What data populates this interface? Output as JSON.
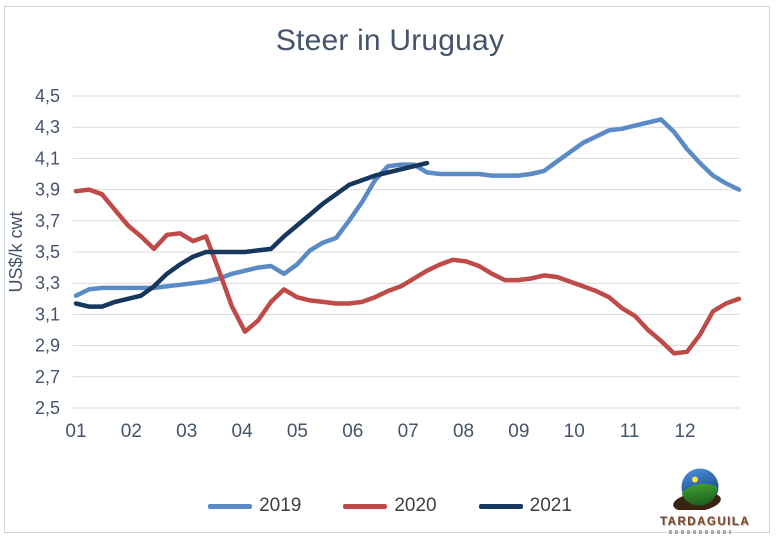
{
  "title": "Steer in Uruguay",
  "y_axis_title": "US$/k cwt",
  "y_tick_labels": [
    "4,5",
    "4,3",
    "4,1",
    "3,9",
    "3,7",
    "3,5",
    "3,3",
    "3,1",
    "2,9",
    "2,7",
    "2,5"
  ],
  "x_labels": [
    "01",
    "02",
    "03",
    "04",
    "05",
    "06",
    "07",
    "08",
    "09",
    "10",
    "11",
    "12"
  ],
  "legend_labels": [
    "2019",
    "2020",
    "2021"
  ],
  "logo": {
    "text": "TARDAGUILA"
  },
  "colors": {
    "series_2019": "#5B8BC5",
    "series_2020": "#BE4B48",
    "series_2021": "#17375E",
    "gridline": "#D9D9D9",
    "axis_text": "#44546A",
    "legend_text": "#404040",
    "title_text": "#44546A"
  },
  "chart_data": {
    "type": "line",
    "title": "Steer in Uruguay",
    "xlabel": "",
    "ylabel": "US$/k cwt",
    "ylim": [
      2.5,
      4.5
    ],
    "ytick_step": 0.2,
    "x_axis_labels": [
      "01",
      "02",
      "03",
      "04",
      "05",
      "06",
      "07",
      "08",
      "09",
      "10",
      "11",
      "12"
    ],
    "x_unit": "weekly observations across months 01-12",
    "grid": "horizontal only",
    "legend_position": "bottom center",
    "series": [
      {
        "name": "2019",
        "color": "#5B8BC5",
        "values": [
          3.22,
          3.26,
          3.27,
          3.27,
          3.27,
          3.27,
          3.27,
          3.28,
          3.29,
          3.3,
          3.31,
          3.33,
          3.36,
          3.38,
          3.4,
          3.41,
          3.36,
          3.42,
          3.51,
          3.56,
          3.59,
          3.7,
          3.82,
          3.96,
          4.05,
          4.06,
          4.06,
          4.01,
          4.0,
          4.0,
          4.0,
          4.0,
          3.99,
          3.99,
          3.99,
          4.0,
          4.02,
          4.08,
          4.14,
          4.2,
          4.24,
          4.28,
          4.29,
          4.31,
          4.33,
          4.35,
          4.27,
          4.16,
          4.07,
          3.99,
          3.94,
          3.9
        ]
      },
      {
        "name": "2020",
        "color": "#BE4B48",
        "values": [
          3.89,
          3.9,
          3.87,
          3.77,
          3.67,
          3.6,
          3.52,
          3.61,
          3.62,
          3.57,
          3.6,
          3.38,
          3.15,
          2.99,
          3.06,
          3.18,
          3.26,
          3.21,
          3.19,
          3.18,
          3.17,
          3.17,
          3.18,
          3.21,
          3.25,
          3.28,
          3.33,
          3.38,
          3.42,
          3.45,
          3.44,
          3.41,
          3.36,
          3.32,
          3.32,
          3.33,
          3.35,
          3.34,
          3.31,
          3.28,
          3.25,
          3.21,
          3.14,
          3.09,
          3.0,
          2.93,
          2.85,
          2.86,
          2.97,
          3.12,
          3.17,
          3.2
        ]
      },
      {
        "name": "2021",
        "color": "#17375E",
        "values": [
          3.17,
          3.15,
          3.15,
          3.18,
          3.2,
          3.22,
          3.28,
          3.36,
          3.42,
          3.47,
          3.5,
          3.5,
          3.5,
          3.5,
          3.51,
          3.52,
          3.6,
          3.67,
          3.74,
          3.81,
          3.87,
          3.93,
          3.96,
          3.99,
          4.01,
          4.03,
          4.05,
          4.07
        ]
      }
    ]
  }
}
